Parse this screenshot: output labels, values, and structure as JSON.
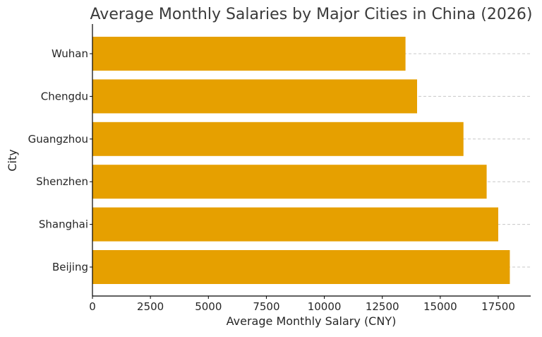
{
  "chart_data": {
    "type": "bar",
    "orientation": "horizontal",
    "title": "Average Monthly Salaries by Major Cities in China (2026)",
    "xlabel": "Average Monthly Salary (CNY)",
    "ylabel": "City",
    "categories": [
      "Beijing",
      "Shanghai",
      "Shenzhen",
      "Guangzhou",
      "Chengdu",
      "Wuhan"
    ],
    "values": [
      18000,
      17500,
      17000,
      16000,
      14000,
      13500
    ],
    "xlim": [
      0,
      18900
    ],
    "xticks": [
      0,
      2500,
      5000,
      7500,
      10000,
      12500,
      15000,
      17500
    ],
    "grid": "x-axis dashed",
    "bar_color": "#E6A000"
  }
}
